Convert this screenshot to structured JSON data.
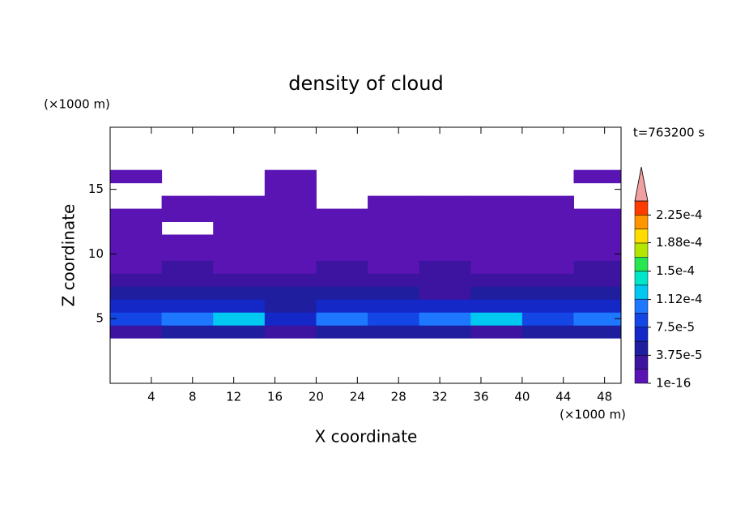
{
  "chart_data": {
    "type": "contour",
    "title": "density of cloud",
    "xlabel": "X coordinate",
    "ylabel": "Z coordinate",
    "xunit": "(×1000 m)",
    "yunit": "(×1000 m)",
    "annotation": "t=763200 s",
    "xlim": [
      0,
      49.6
    ],
    "ylim": [
      0,
      19.8
    ],
    "xticks": [
      4,
      8,
      12,
      16,
      20,
      24,
      28,
      32,
      36,
      40,
      44,
      48
    ],
    "yticks": [
      5,
      10,
      15
    ],
    "x": [
      2.5,
      7.5,
      12.5,
      17.5,
      22.5,
      27.5,
      32.5,
      37.5,
      42.5,
      47.5
    ],
    "y": [
      4,
      5,
      6,
      7,
      8,
      9,
      10,
      11,
      12,
      13,
      14,
      15,
      16
    ],
    "values": [
      [
        3e-05,
        4e-05,
        4e-05,
        3e-05,
        4e-05,
        4e-05,
        4e-05,
        3e-05,
        4e-05,
        4e-05
      ],
      [
        9e-05,
        0.0001,
        0.000115,
        7e-05,
        0.0001,
        9e-05,
        0.0001,
        0.000115,
        9e-05,
        0.0001
      ],
      [
        6e-05,
        7e-05,
        6e-05,
        5e-05,
        6e-05,
        7e-05,
        6e-05,
        6e-05,
        7e-05,
        6e-05
      ],
      [
        4e-05,
        4e-05,
        5e-05,
        4e-05,
        4e-05,
        4e-05,
        3e-05,
        4e-05,
        4e-05,
        5e-05
      ],
      [
        2e-05,
        3e-05,
        2e-05,
        3e-05,
        2e-05,
        2e-05,
        3e-05,
        2e-05,
        2e-05,
        3e-05
      ],
      [
        1e-05,
        2e-05,
        1e-05,
        1e-05,
        2e-05,
        1e-05,
        2e-05,
        1e-05,
        1e-05,
        2e-05
      ],
      [
        1e-05,
        1e-05,
        1e-05,
        1e-05,
        1e-05,
        1e-05,
        1e-05,
        1e-05,
        1e-05,
        1e-05
      ],
      [
        1e-05,
        1e-05,
        1e-05,
        1e-05,
        1e-05,
        1e-05,
        1e-05,
        1e-05,
        1e-05,
        1e-05
      ],
      [
        1e-05,
        null,
        1e-05,
        1e-05,
        1e-05,
        1e-05,
        1e-05,
        1e-05,
        1e-05,
        1e-05
      ],
      [
        1e-05,
        1e-05,
        1e-05,
        1e-05,
        1e-05,
        1e-05,
        1e-05,
        1e-05,
        1e-05,
        1e-05
      ],
      [
        null,
        1e-05,
        1e-05,
        1e-05,
        null,
        1e-05,
        1e-05,
        1e-05,
        1e-05,
        null
      ],
      [
        null,
        null,
        null,
        1e-05,
        null,
        null,
        null,
        null,
        null,
        null
      ],
      [
        1e-05,
        null,
        null,
        1e-05,
        null,
        null,
        null,
        null,
        null,
        1e-05
      ]
    ],
    "colorbar": {
      "clim": [
        1e-16,
        0.00024375
      ],
      "colors": [
        "#5a14b4",
        "#3c14a0",
        "#1e1e9e",
        "#1428c8",
        "#1446e6",
        "#1e78ff",
        "#00c8f0",
        "#00e6c8",
        "#28e650",
        "#b4e600",
        "#ffdc00",
        "#ff9600",
        "#ff3c00"
      ],
      "over_color": "#f0a0a0",
      "ticks": [
        {
          "value": 1e-16,
          "label": "1e-16"
        },
        {
          "value": 3.75e-05,
          "label": "3.75e-5"
        },
        {
          "value": 7.5e-05,
          "label": "7.5e-5"
        },
        {
          "value": 0.000112,
          "label": "1.12e-4"
        },
        {
          "value": 0.00015,
          "label": "1.5e-4"
        },
        {
          "value": 0.000188,
          "label": "1.88e-4"
        },
        {
          "value": 0.000225,
          "label": "2.25e-4"
        }
      ]
    }
  }
}
